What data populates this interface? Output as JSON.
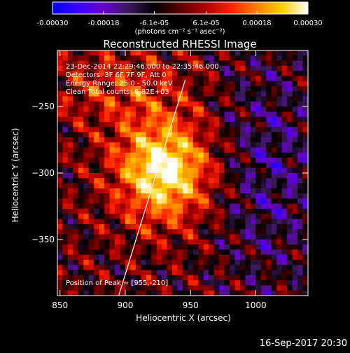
{
  "colorbar": {
    "ticks": [
      {
        "value": -0.0003,
        "label": "-0.00030"
      },
      {
        "value": -0.00018,
        "label": "-0.00018"
      },
      {
        "value": -6.1e-05,
        "label": "-6.1e-05"
      },
      {
        "value": 6.1e-05,
        "label": "6.1e-05"
      },
      {
        "value": 0.00018,
        "label": "0.00018"
      },
      {
        "value": 0.0003,
        "label": "0.00030"
      }
    ],
    "range": [
      -0.0003,
      0.0003
    ],
    "unit_label": "(photons cm⁻² s⁻¹ asec⁻²)",
    "colors": [
      "#0000ff",
      "#3a00ff",
      "#6a00d0",
      "#3a1a5a",
      "#000000",
      "#5a0000",
      "#b00000",
      "#ff2200",
      "#ff8000",
      "#ffd000",
      "#ffffff"
    ]
  },
  "chart_data": {
    "type": "heatmap",
    "title": "Reconstructed RHESSI Image",
    "xlabel": "Heliocentric X (arcsec)",
    "ylabel": "Heliocentric Y (arcsec)",
    "xlim": [
      848,
      1040
    ],
    "ylim": [
      -392,
      -208
    ],
    "xticks": [
      {
        "value": 850,
        "label": "850"
      },
      {
        "value": 900,
        "label": "900"
      },
      {
        "value": 950,
        "label": "950"
      },
      {
        "value": 1000,
        "label": "1000"
      }
    ],
    "yticks": [
      {
        "value": -250,
        "label": "−250"
      },
      {
        "value": -300,
        "label": "−300"
      },
      {
        "value": -350,
        "label": "−350"
      }
    ],
    "peak": {
      "x": 955,
      "y": -210
    },
    "limb_line": [
      [
        895,
        -392
      ],
      [
        946,
        -230
      ]
    ],
    "annotations": [
      "23-Dec-2014 22:29:46.000 to 22:35:46.000",
      "Detectors: 3F 6F 7F 9F, Att 0",
      "Energy Range: 25.0 - 50.0 keV",
      "Clean     Total counts: 6.82E+03"
    ],
    "peak_label": "Position of Peak = [955,-210]"
  },
  "footer_timestamp": "16-Sep-2017 20:30"
}
